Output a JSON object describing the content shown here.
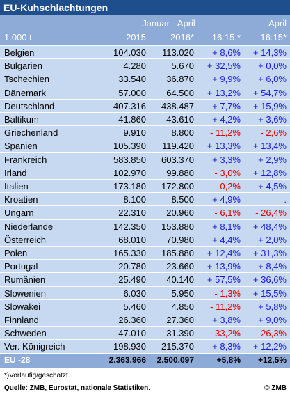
{
  "header": {
    "title": "EU-Kuhschlachtungen",
    "period": "Januar - April",
    "month": "April",
    "columns": [
      "1.000 t",
      "2015",
      "2016*",
      "16:15 *",
      "16:15*"
    ]
  },
  "table": {
    "rows": [
      [
        "Belgien",
        "104.030",
        "113.020",
        "+ 8,6%",
        "+ 14,3%"
      ],
      [
        "Bulgarien",
        "4.280",
        "5.670",
        "+ 32,5%",
        "+ 0,0%"
      ],
      [
        "Tschechien",
        "33.540",
        "36.870",
        "+ 9,9%",
        "+ 6,0%"
      ],
      [
        "Dänemark",
        "57.000",
        "64.500",
        "+ 13,2%",
        "+ 54,7%"
      ],
      [
        "Deutschland",
        "407.316",
        "438.487",
        "+ 7,7%",
        "+ 15,9%"
      ],
      [
        "Baltikum",
        "41.860",
        "43.610",
        "+ 4,2%",
        "+ 3,6%"
      ],
      [
        "Griechenland",
        "9.910",
        "8.800",
        "- 11,2%",
        "- 2,6%"
      ],
      [
        "Spanien",
        "105.390",
        "119.420",
        "+ 13,3%",
        "+ 13,4%"
      ],
      [
        "Frankreich",
        "583.850",
        "603.370",
        "+ 3,3%",
        "+ 2,9%"
      ],
      [
        "Irland",
        "102.970",
        "99.880",
        "- 3,0%",
        "+ 12,8%"
      ],
      [
        "Italien",
        "173.180",
        "172.800",
        "- 0,2%",
        "+ 4,5%"
      ],
      [
        "Kroatien",
        "8.100",
        "8.500",
        "+ 4,9%",
        "."
      ],
      [
        "Ungarn",
        "22.310",
        "20.960",
        "- 6,1%",
        "- 26,4%"
      ],
      [
        "Niederlande",
        "142.350",
        "153.880",
        "+ 8,1%",
        "+ 48,4%"
      ],
      [
        "Österreich",
        "68.010",
        "70.980",
        "+ 4,4%",
        "+ 2,0%"
      ],
      [
        "Polen",
        "165.330",
        "185.880",
        "+ 12,4%",
        "+ 31,3%"
      ],
      [
        "Portugal",
        "20.780",
        "23.660",
        "+ 13,9%",
        "+ 8,4%"
      ],
      [
        "Rumänien",
        "25.490",
        "40.140",
        "+ 57,5%",
        "+ 36,6%"
      ],
      [
        "Slowenien",
        "6.030",
        "5.950",
        "- 1,3%",
        "+ 15,5%"
      ],
      [
        "Slowakei",
        "5.460",
        "4.850",
        "- 11,2%",
        "+ 5,8%"
      ],
      [
        "Finnland",
        "26.360",
        "27.360",
        "+ 3,8%",
        "+ 9,0%"
      ],
      [
        "Schweden",
        "47.010",
        "31.390",
        "- 33,2%",
        "- 26,3%"
      ],
      [
        "Ver. Königreich",
        "198.930",
        "215.370",
        "+ 8,3%",
        "+ 12,2%"
      ]
    ],
    "total": [
      "EU -28",
      "2.363.966",
      "2.500.097",
      "+5,8%",
      "+12,5%"
    ]
  },
  "footer": {
    "note": "*)Vorläufig/geschätzt.",
    "source": "Quelle: ZMB, Eurostat, nationale Statistiken.",
    "copyright": "© ZMB"
  }
}
